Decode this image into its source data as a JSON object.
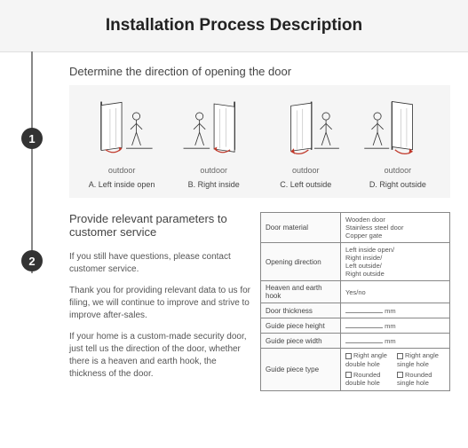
{
  "header": {
    "title": "Installation Process Description"
  },
  "step1": {
    "marker": "1",
    "title": "Determine the direction of opening the door",
    "label": "outdoor",
    "captions": [
      "A. Left inside open",
      "B. Right inside",
      "C. Left outside",
      "D. Right outside"
    ]
  },
  "step2": {
    "marker": "2",
    "title": "Provide relevant parameters to customer service",
    "para1": "If you still have questions, please contact customer service.",
    "para2": "Thank you for providing relevant data to us for filing, we will continue to improve and strive to improve after-sales.",
    "para3": "If your home is a custom-made security door, just tell us the direction of the door, whether there is a heaven and earth hook, the thickness of the door.",
    "table": {
      "rows": [
        {
          "label": "Door material",
          "value": "Wooden door\nStainless steel door\nCopper gate"
        },
        {
          "label": "Opening direction",
          "value": "Left inside open/\nRight inside/\nLeft outside/\nRight outside"
        },
        {
          "label": "Heaven and earth hook",
          "value": "Yes/no"
        },
        {
          "label": "Door thickness",
          "value": "BLANK_MM"
        },
        {
          "label": "Guide piece height",
          "value": "BLANK_MM"
        },
        {
          "label": "Guide piece width",
          "value": "BLANK_MM"
        },
        {
          "label": "Guide piece type",
          "value": "PIECE_TYPE"
        }
      ],
      "piece_opts": [
        "Right angle double hole",
        "Right angle single hole",
        "Rounded double hole",
        "Rounded single hole"
      ],
      "mm": "mm"
    }
  },
  "colors": {
    "marker_bg": "#333333",
    "panel_bg": "#f5f5f5",
    "arc": "#c0392b"
  }
}
